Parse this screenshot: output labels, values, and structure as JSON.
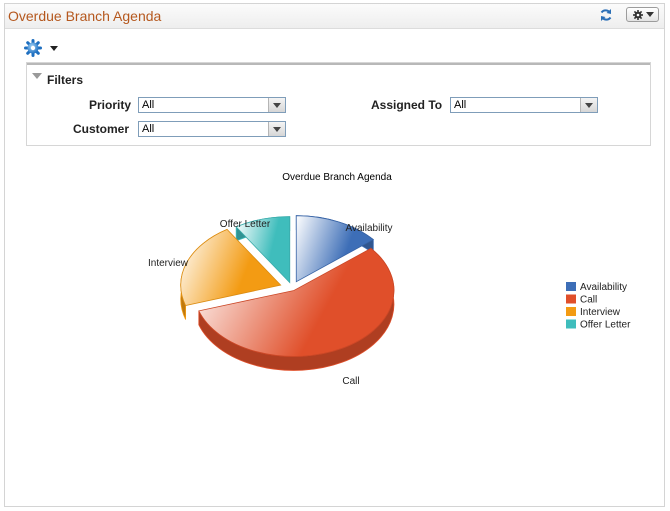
{
  "pagelet": {
    "title": "Overdue Branch Agenda",
    "refresh_icon": "refresh-icon",
    "actions_icon": "gear-icon"
  },
  "toolbar": {
    "settings_icon": "gear-icon"
  },
  "filters": {
    "title": "Filters",
    "priority_label": "Priority",
    "priority_value": "All",
    "assigned_label": "Assigned To",
    "assigned_value": "All",
    "customer_label": "Customer",
    "customer_value": "All"
  },
  "colors": {
    "title": "#b5581e",
    "availability": "#3d6eb7",
    "call": "#e04f2a",
    "interview": "#f39b13",
    "offer_letter": "#3fbdbc"
  },
  "chart_data": {
    "type": "pie",
    "title": "Overdue Branch Agenda",
    "legend_position": "right",
    "categories": [
      "Availability",
      "Call",
      "Interview",
      "Offer Letter"
    ],
    "values": [
      14,
      56,
      21,
      9
    ]
  }
}
